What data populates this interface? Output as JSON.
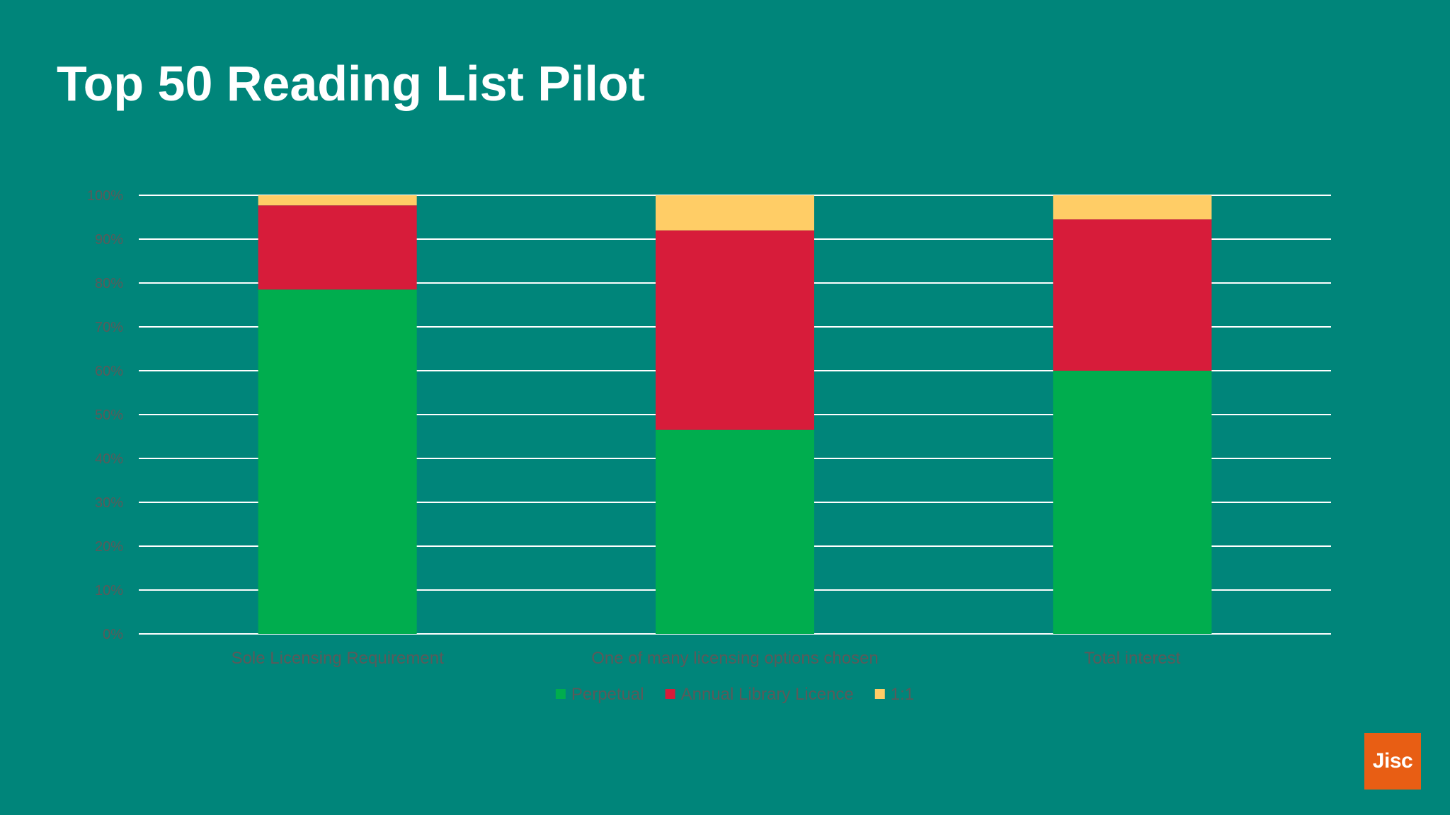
{
  "slide": {
    "title": "Top 50 Reading List Pilot",
    "logo": "Jisc"
  },
  "colors": {
    "background": "#00857a",
    "logo_bg": "#e85e14",
    "axis_text": "#5a5a5a",
    "gridline": "#ffffff"
  },
  "chart_data": {
    "type": "bar",
    "stacked": true,
    "percent_axis": true,
    "categories": [
      "Sole Licensing Requirement",
      "One of many licensing options chosen",
      "Total interest"
    ],
    "series": [
      {
        "name": "Perpetual",
        "color": "#00ad4e",
        "values": [
          78.5,
          46.5,
          60
        ]
      },
      {
        "name": "Annual Library Licence",
        "color": "#d71c3a",
        "values": [
          19.2,
          45.5,
          34.5
        ]
      },
      {
        "name": "1:1",
        "color": "#ffcd66",
        "values": [
          2.3,
          8,
          5.5
        ]
      }
    ],
    "yticks": [
      "0%",
      "10%",
      "20%",
      "30%",
      "40%",
      "50%",
      "60%",
      "70%",
      "80%",
      "90%",
      "100%"
    ],
    "ylim": [
      0,
      100
    ],
    "grid": true,
    "legend_position": "bottom"
  }
}
